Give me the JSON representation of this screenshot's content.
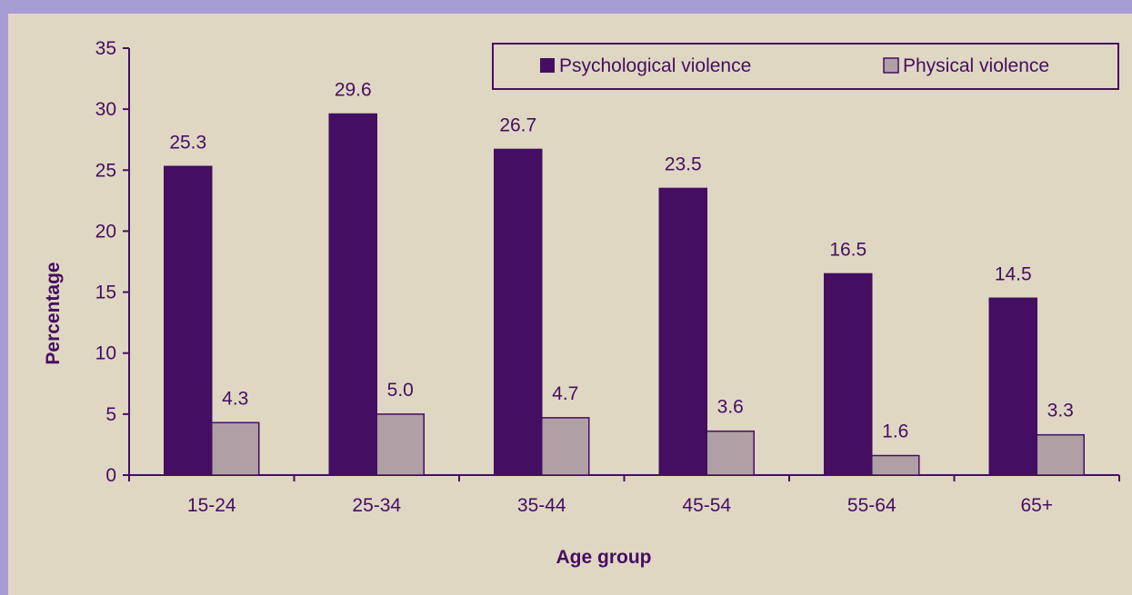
{
  "chart_data": {
    "type": "bar",
    "categories": [
      "15-24",
      "25-34",
      "35-44",
      "45-54",
      "55-64",
      "65+"
    ],
    "series": [
      {
        "name": "Psychological violence",
        "values": [
          25.3,
          29.6,
          26.7,
          23.5,
          16.5,
          14.5
        ],
        "labels": [
          "25.3",
          "29.6",
          "26.7",
          "23.5",
          "16.5",
          "14.5"
        ],
        "color": "#440e62"
      },
      {
        "name": "Physical violence",
        "values": [
          4.3,
          5.0,
          4.7,
          3.6,
          1.6,
          3.3
        ],
        "labels": [
          "4.3",
          "5.0",
          "4.7",
          "3.6",
          "1.6",
          "3.3"
        ],
        "color": "#b09fa5"
      }
    ],
    "xlabel": "Age group",
    "ylabel": "Percentage",
    "ylim": [
      0,
      35
    ],
    "yticks": [
      "0",
      "5",
      "10",
      "15",
      "20",
      "25",
      "30",
      "35"
    ],
    "grid": false,
    "legend_position": "top-right",
    "colors": {
      "axis": "#440e62",
      "text": "#440e62",
      "plot_background": "#e0d7c3",
      "page_border": "#a59dd1"
    }
  }
}
